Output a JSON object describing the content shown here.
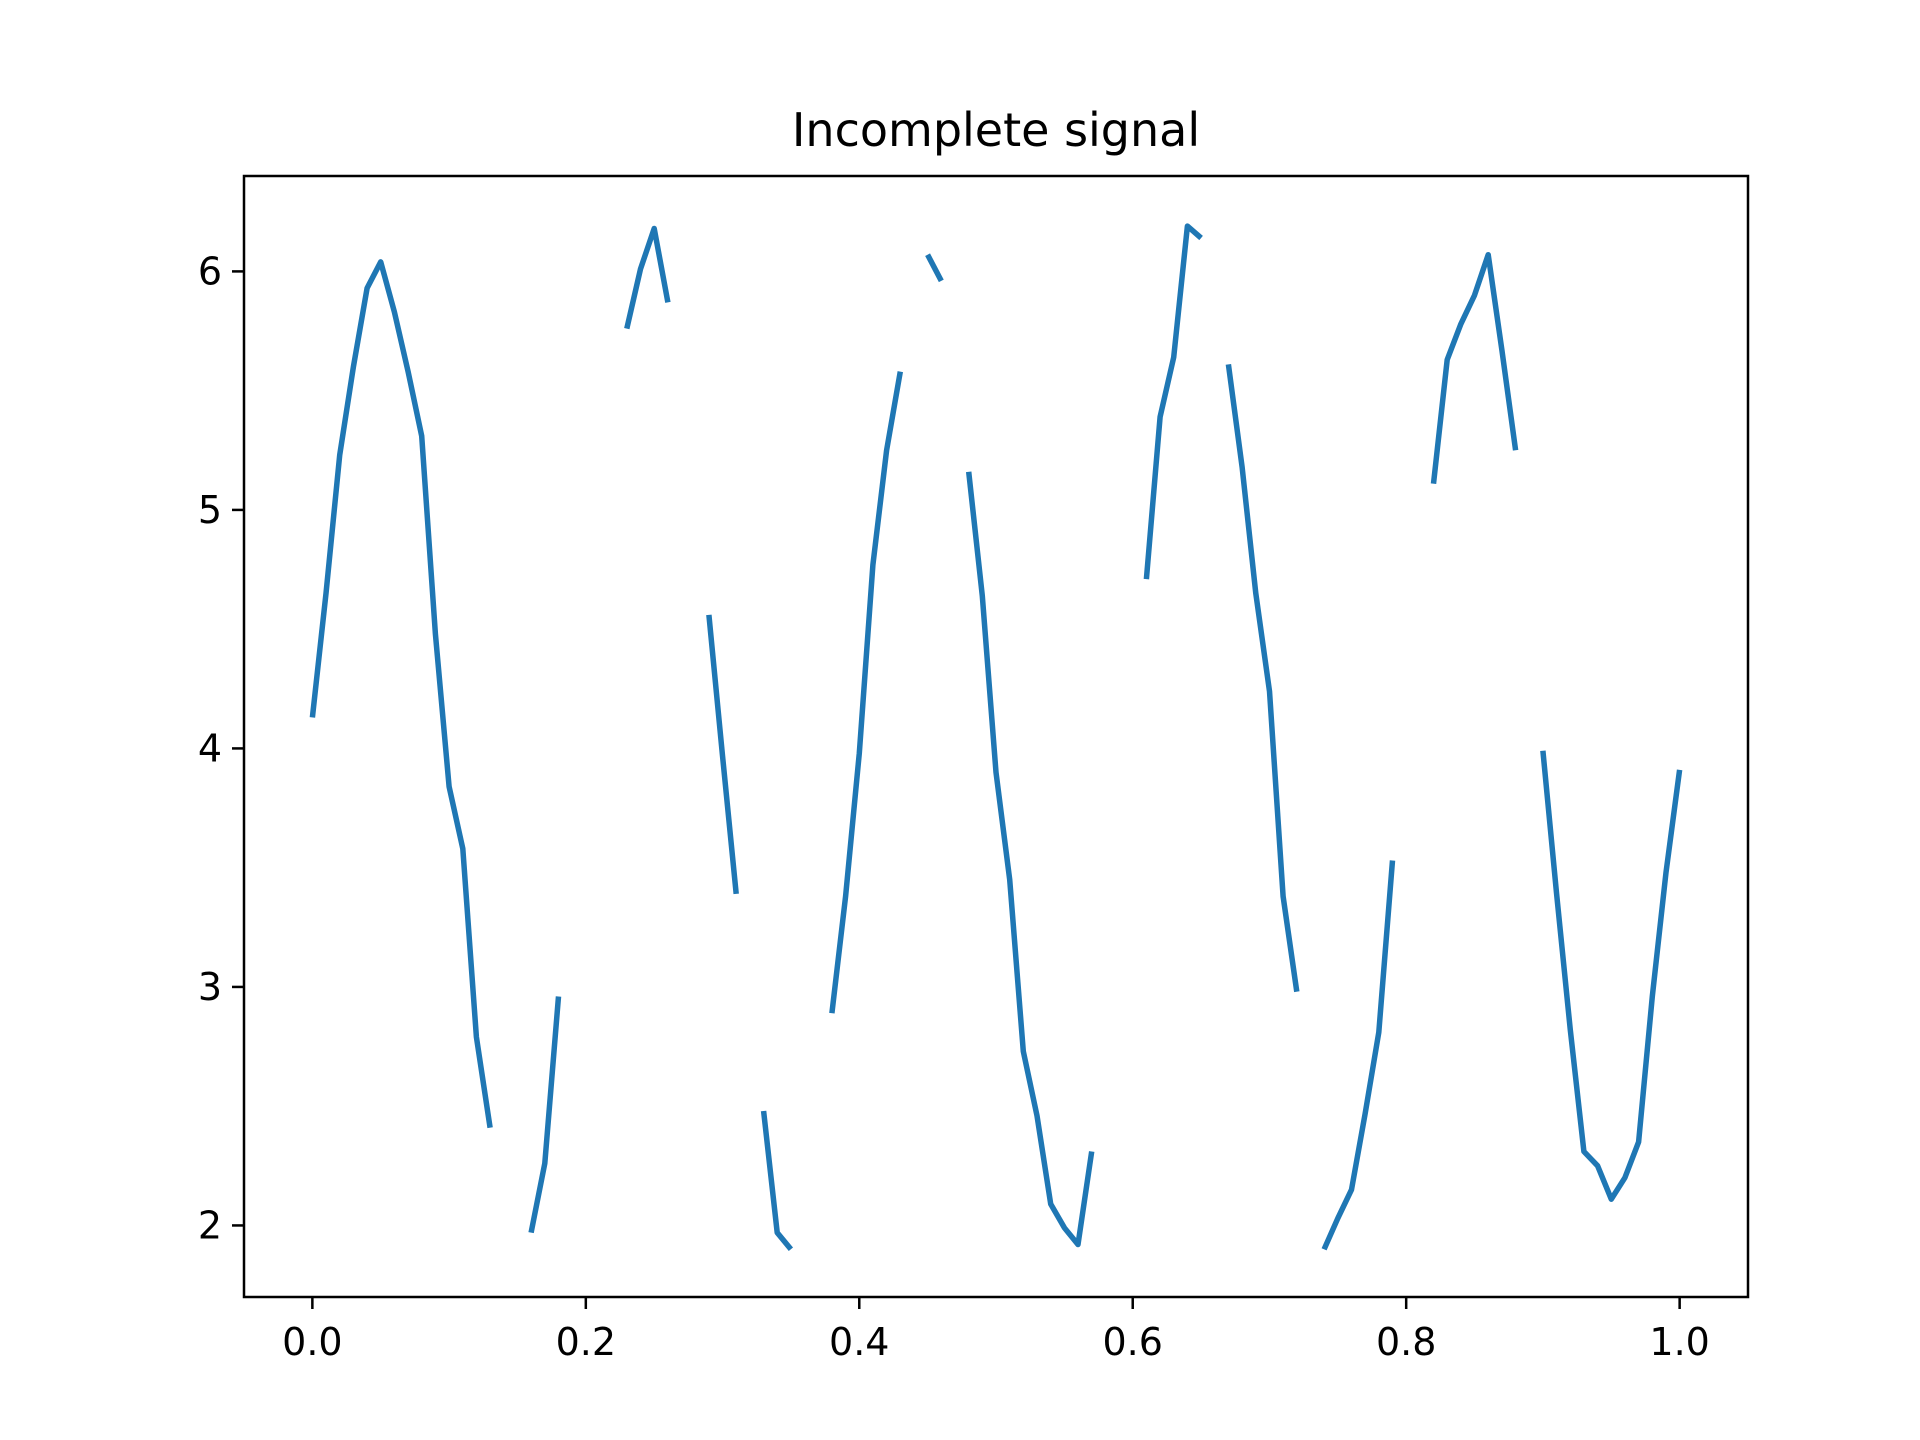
{
  "chart_data": {
    "type": "line",
    "title": "Incomplete signal",
    "xlabel": "",
    "ylabel": "",
    "xlim": [
      -0.05,
      1.05
    ],
    "ylim": [
      1.7,
      6.4
    ],
    "xticks": [
      "0.0",
      "0.2",
      "0.4",
      "0.6",
      "0.8",
      "1.0"
    ],
    "yticks": [
      "2",
      "3",
      "4",
      "5",
      "6"
    ],
    "grid": false,
    "line_color": "#1f77b4",
    "series": [
      {
        "x": [
          0.0,
          0.01,
          0.02,
          0.03,
          0.04,
          0.05,
          0.06,
          0.07,
          0.08,
          0.09,
          0.1,
          0.11,
          0.12,
          0.13,
          0.14,
          0.15,
          0.16,
          0.17,
          0.18,
          0.19,
          0.2,
          0.21,
          0.22,
          0.23,
          0.24,
          0.25,
          0.26,
          0.27,
          0.28,
          0.29,
          0.3,
          0.31,
          0.32,
          0.33,
          0.34,
          0.35,
          0.36,
          0.37,
          0.38,
          0.39,
          0.4,
          0.41,
          0.42,
          0.43,
          0.44,
          0.45,
          0.46,
          0.47,
          0.48,
          0.49,
          0.5,
          0.51,
          0.52,
          0.53,
          0.54,
          0.55,
          0.56,
          0.57,
          0.58,
          0.59,
          0.6,
          0.61,
          0.62,
          0.63,
          0.64,
          0.65,
          0.66,
          0.67,
          0.68,
          0.69,
          0.7,
          0.71,
          0.72,
          0.73,
          0.74,
          0.75,
          0.76,
          0.77,
          0.78,
          0.79,
          0.8,
          0.81,
          0.82,
          0.83,
          0.84,
          0.85,
          0.86,
          0.87,
          0.88,
          0.89,
          0.9,
          0.91,
          0.92,
          0.93,
          0.94,
          0.95,
          0.96,
          0.97,
          0.98,
          0.99,
          1.0
        ],
        "y": [
          4.13,
          4.65,
          5.23,
          5.6,
          5.93,
          6.04,
          5.83,
          5.58,
          5.31,
          4.48,
          3.84,
          3.58,
          2.79,
          2.41,
          null,
          null,
          1.97,
          2.26,
          2.96,
          null,
          null,
          null,
          null,
          5.76,
          6.01,
          6.18,
          5.87,
          null,
          null,
          4.56,
          3.97,
          3.39,
          null,
          2.48,
          1.97,
          1.9,
          null,
          null,
          2.89,
          3.38,
          3.98,
          4.77,
          5.25,
          5.58,
          null,
          6.07,
          5.96,
          null,
          5.16,
          4.64,
          3.9,
          3.45,
          2.73,
          2.46,
          2.09,
          1.99,
          1.92,
          2.31,
          null,
          null,
          null,
          4.71,
          5.39,
          5.64,
          6.19,
          6.14,
          null,
          5.61,
          5.18,
          4.65,
          4.24,
          3.38,
          2.98,
          null,
          1.9,
          2.03,
          2.15,
          2.47,
          2.81,
          3.53,
          null,
          null,
          5.11,
          5.63,
          5.78,
          5.9,
          6.07,
          5.67,
          5.25,
          null,
          3.99,
          3.39,
          2.82,
          2.31,
          2.25,
          2.11,
          2.2,
          2.35,
          2.96,
          3.48,
          3.91
        ]
      }
    ]
  }
}
